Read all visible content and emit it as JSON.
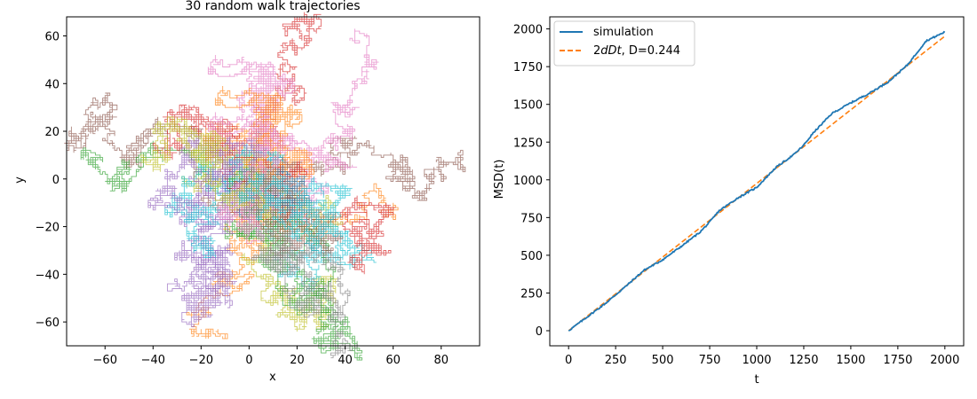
{
  "chart_data": [
    {
      "type": "line",
      "title": "30 random walk trajectories",
      "xlabel": "x",
      "ylabel": "y",
      "xlim": [
        -76,
        96
      ],
      "ylim": [
        -70,
        68
      ],
      "xticks": [
        -60,
        -40,
        -20,
        0,
        20,
        40,
        60,
        80
      ],
      "yticks": [
        -60,
        -40,
        -20,
        0,
        20,
        40,
        60
      ],
      "xtick_labels": [
        "−60",
        "−40",
        "−20",
        "0",
        "20",
        "40",
        "60",
        "80"
      ],
      "ytick_labels": [
        "−60",
        "−40",
        "−20",
        "0",
        "20",
        "40",
        "60"
      ],
      "n_trajectories": 30,
      "steps_per_trajectory": 2000,
      "grid": false,
      "colors": [
        "#1f77b4",
        "#ff7f0e",
        "#2ca02c",
        "#d62728",
        "#9467bd",
        "#8c564b",
        "#e377c2",
        "#7f7f7f",
        "#bcbd22",
        "#17becf"
      ],
      "tracked_walks": [
        {
          "color": "#8c564b",
          "endpoint": [
            88,
            8
          ]
        },
        {
          "color": "#e377c2",
          "endpoint": [
            40,
            58
          ]
        },
        {
          "color": "#ff7f0e",
          "endpoint": [
            -14,
            -62
          ]
        },
        {
          "color": "#8c564b",
          "endpoint": [
            -66,
            28
          ]
        },
        {
          "color": "#bcbd22",
          "endpoint": [
            22,
            -58
          ]
        },
        {
          "color": "#d62728",
          "endpoint": [
            22,
            58
          ]
        },
        {
          "color": "#17becf",
          "endpoint": [
            35,
            -24
          ]
        },
        {
          "color": "#ff7f0e",
          "endpoint": [
            55,
            -13
          ]
        },
        {
          "color": "#2ca02c",
          "endpoint": [
            -62,
            7
          ]
        },
        {
          "color": "#9467bd",
          "endpoint": [
            -30,
            -42
          ]
        }
      ]
    },
    {
      "type": "line",
      "title": "",
      "xlabel": "t",
      "ylabel": "MSD(t)",
      "xlim": [
        -100,
        2100
      ],
      "ylim": [
        -100,
        2080
      ],
      "xticks": [
        0,
        250,
        500,
        750,
        1000,
        1250,
        1500,
        1750,
        2000
      ],
      "yticks": [
        0,
        250,
        500,
        750,
        1000,
        1250,
        1500,
        1750,
        2000
      ],
      "xtick_labels": [
        "0",
        "250",
        "500",
        "750",
        "1000",
        "1250",
        "1500",
        "1750",
        "2000"
      ],
      "ytick_labels": [
        "0",
        "250",
        "500",
        "750",
        "1000",
        "1250",
        "1500",
        "1750",
        "2000"
      ],
      "legend_position": "top-left",
      "grid": false,
      "series": [
        {
          "name": "simulation",
          "style": "solid",
          "color": "#1f77b4",
          "x": [
            0,
            100,
            200,
            300,
            400,
            500,
            600,
            700,
            750,
            800,
            900,
            1000,
            1100,
            1200,
            1250,
            1300,
            1400,
            1500,
            1600,
            1700,
            1800,
            1850,
            1900,
            2000
          ],
          "y": [
            0,
            92,
            185,
            290,
            400,
            470,
            560,
            655,
            720,
            795,
            880,
            950,
            1080,
            1170,
            1230,
            1310,
            1440,
            1510,
            1575,
            1650,
            1760,
            1840,
            1920,
            1980
          ]
        },
        {
          "name": "2dDt, D=0.244",
          "legend_parts": [
            {
              "text": "2",
              "italic": false
            },
            {
              "text": "dDt",
              "italic": true
            },
            {
              "text": ", D=0.244",
              "italic": false
            }
          ],
          "style": "dashed",
          "color": "#ff7f0e",
          "x": [
            0,
            2000
          ],
          "y": [
            0,
            1952
          ]
        }
      ]
    }
  ]
}
